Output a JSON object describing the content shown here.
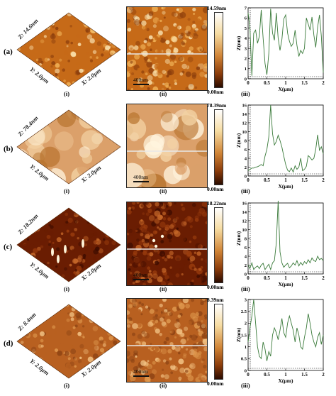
{
  "rows": [
    {
      "label": "(a)",
      "z_label": "Z: 14.6nm",
      "y_label": "Y: 2.0µm",
      "x_label": "X: 2.0µm",
      "scale_bar": "400nm",
      "cbar_max": "14.59nm",
      "cbar_min": "0.00nm",
      "sub_i": "(i)",
      "sub_ii": "(ii)",
      "sub_iii": "(iii)"
    },
    {
      "label": "(b)",
      "z_label": "Z: 78.4nm",
      "y_label": "Y: 2.0µm",
      "x_label": "X: 2.0µm",
      "scale_bar": "400nm",
      "cbar_max": "78.39nm",
      "cbar_min": "0.00nm",
      "sub_i": "(i)",
      "sub_ii": "(ii)",
      "sub_iii": "(iii)"
    },
    {
      "label": "(c)",
      "z_label": "Z: 18.2nm",
      "y_label": "Y: 2.0µm",
      "x_label": "X: 2.0µm",
      "scale_bar": "400nm",
      "cbar_max": "18.22nm",
      "cbar_min": "0.00nm",
      "sub_i": "(i)",
      "sub_ii": "(ii)",
      "sub_iii": "(iii)"
    },
    {
      "label": "(d)",
      "z_label": "Z: 8.4nm",
      "y_label": "Y: 2.0µm",
      "x_label": "X: 2.0µm",
      "scale_bar": "400nm",
      "cbar_max": "8.39nm",
      "cbar_min": "0.00nm",
      "sub_i": "(i)",
      "sub_ii": "(ii)",
      "sub_iii": "(iii)"
    }
  ],
  "chart_data": [
    {
      "type": "line",
      "panel": "(a)(iii)",
      "xlabel": "X(µm)",
      "ylabel": "Z(nm)",
      "xlim": [
        0,
        2
      ],
      "ylim": [
        0,
        7
      ],
      "xticks": [
        0,
        0.5,
        1,
        1.5,
        2
      ],
      "yticks": [
        0,
        1,
        2,
        3,
        4,
        5,
        6,
        7
      ],
      "x": [
        0,
        0.05,
        0.1,
        0.15,
        0.2,
        0.25,
        0.3,
        0.35,
        0.4,
        0.45,
        0.5,
        0.55,
        0.6,
        0.65,
        0.7,
        0.75,
        0.8,
        0.85,
        0.9,
        0.95,
        1.0,
        1.05,
        1.1,
        1.15,
        1.2,
        1.25,
        1.3,
        1.35,
        1.4,
        1.45,
        1.5,
        1.55,
        1.6,
        1.65,
        1.7,
        1.75,
        1.8,
        1.85,
        1.9,
        1.95,
        2.0
      ],
      "y": [
        6.5,
        5.0,
        0.3,
        4.5,
        4.8,
        3.5,
        4.2,
        6.8,
        4.0,
        1.5,
        0.4,
        2.5,
        6.9,
        4.5,
        3.8,
        6.5,
        4.0,
        2.8,
        3.9,
        5.9,
        6.3,
        4.5,
        3.7,
        3.2,
        3.5,
        4.8,
        3.3,
        2.2,
        2.8,
        2.5,
        3.0,
        6.0,
        5.4,
        4.8,
        6.1,
        4.3,
        3.1,
        5.1,
        6.3,
        4.2,
        0.6
      ]
    },
    {
      "type": "line",
      "panel": "(b)(iii)",
      "xlabel": "X(µm)",
      "ylabel": "Z(nm)",
      "xlim": [
        0,
        2
      ],
      "ylim": [
        0,
        16
      ],
      "xticks": [
        0,
        0.5,
        1,
        1.5,
        2
      ],
      "yticks": [
        0,
        2,
        4,
        6,
        8,
        10,
        12,
        14,
        16
      ],
      "x": [
        0,
        0.05,
        0.1,
        0.15,
        0.2,
        0.25,
        0.3,
        0.35,
        0.4,
        0.45,
        0.5,
        0.55,
        0.6,
        0.65,
        0.7,
        0.75,
        0.8,
        0.85,
        0.9,
        0.95,
        1.0,
        1.05,
        1.1,
        1.15,
        1.2,
        1.25,
        1.3,
        1.35,
        1.4,
        1.45,
        1.5,
        1.55,
        1.6,
        1.65,
        1.7,
        1.75,
        1.8,
        1.85,
        1.9,
        1.95,
        2.0
      ],
      "y": [
        1.2,
        1.5,
        1.8,
        1.8,
        2.0,
        2.1,
        2.3,
        2.6,
        2.3,
        4.5,
        6.0,
        8.8,
        16.0,
        9.5,
        7.0,
        7.8,
        9.2,
        8.0,
        6.5,
        4.5,
        2.6,
        1.3,
        1.0,
        1.8,
        0.9,
        2.3,
        1.5,
        2.0,
        4.0,
        1.2,
        1.5,
        2.2,
        4.6,
        4.2,
        3.6,
        4.0,
        6.0,
        9.3,
        5.8,
        6.6,
        5.0
      ]
    },
    {
      "type": "line",
      "panel": "(c)(iii)",
      "xlabel": "X(µm)",
      "ylabel": "Z(nm)",
      "xlim": [
        0,
        2
      ],
      "ylim": [
        0,
        16
      ],
      "xticks": [
        0,
        0.5,
        1,
        1.5,
        2
      ],
      "yticks": [
        0,
        2,
        4,
        6,
        8,
        10,
        12,
        14,
        16
      ],
      "x": [
        0,
        0.05,
        0.1,
        0.15,
        0.2,
        0.25,
        0.3,
        0.35,
        0.4,
        0.45,
        0.5,
        0.55,
        0.6,
        0.65,
        0.7,
        0.75,
        0.8,
        0.85,
        0.9,
        0.95,
        1.0,
        1.05,
        1.1,
        1.15,
        1.2,
        1.25,
        1.3,
        1.35,
        1.4,
        1.45,
        1.5,
        1.55,
        1.6,
        1.65,
        1.7,
        1.75,
        1.8,
        1.85,
        1.9,
        1.95,
        2.0
      ],
      "y": [
        2.0,
        1.2,
        2.5,
        1.0,
        1.5,
        1.8,
        1.2,
        2.0,
        2.4,
        1.0,
        1.6,
        2.2,
        1.0,
        2.5,
        3.0,
        7.0,
        16.5,
        5.0,
        2.5,
        1.5,
        2.0,
        2.4,
        1.4,
        1.8,
        2.5,
        2.0,
        3.0,
        1.8,
        2.6,
        2.0,
        2.8,
        2.3,
        3.2,
        2.5,
        3.6,
        3.0,
        2.8,
        4.0,
        3.2,
        3.5,
        3.0
      ]
    },
    {
      "type": "line",
      "panel": "(d)(iii)",
      "xlabel": "X(µm)",
      "ylabel": "Z(nm)",
      "xlim": [
        0,
        2
      ],
      "ylim": [
        0,
        3
      ],
      "xticks": [
        0,
        0.5,
        1,
        1.5,
        2
      ],
      "yticks": [
        0,
        0.5,
        1,
        1.5,
        2,
        2.5,
        3
      ],
      "x": [
        0,
        0.05,
        0.1,
        0.15,
        0.2,
        0.25,
        0.3,
        0.35,
        0.4,
        0.45,
        0.5,
        0.55,
        0.6,
        0.65,
        0.7,
        0.75,
        0.8,
        0.85,
        0.9,
        0.95,
        1.0,
        1.05,
        1.1,
        1.15,
        1.2,
        1.25,
        1.3,
        1.35,
        1.4,
        1.45,
        1.5,
        1.55,
        1.6,
        1.65,
        1.7,
        1.75,
        1.8,
        1.85,
        1.9,
        1.95,
        2.0
      ],
      "y": [
        1.2,
        1.8,
        2.3,
        3.0,
        2.0,
        1.0,
        0.6,
        0.5,
        1.2,
        0.9,
        0.4,
        0.8,
        0.6,
        1.5,
        1.8,
        1.6,
        1.3,
        1.7,
        2.2,
        1.6,
        1.4,
        2.0,
        2.3,
        2.0,
        1.7,
        1.2,
        1.8,
        1.5,
        1.0,
        0.9,
        1.4,
        1.8,
        2.4,
        2.0,
        1.5,
        1.2,
        1.0,
        1.4,
        1.6,
        1.1,
        1.5
      ]
    }
  ]
}
